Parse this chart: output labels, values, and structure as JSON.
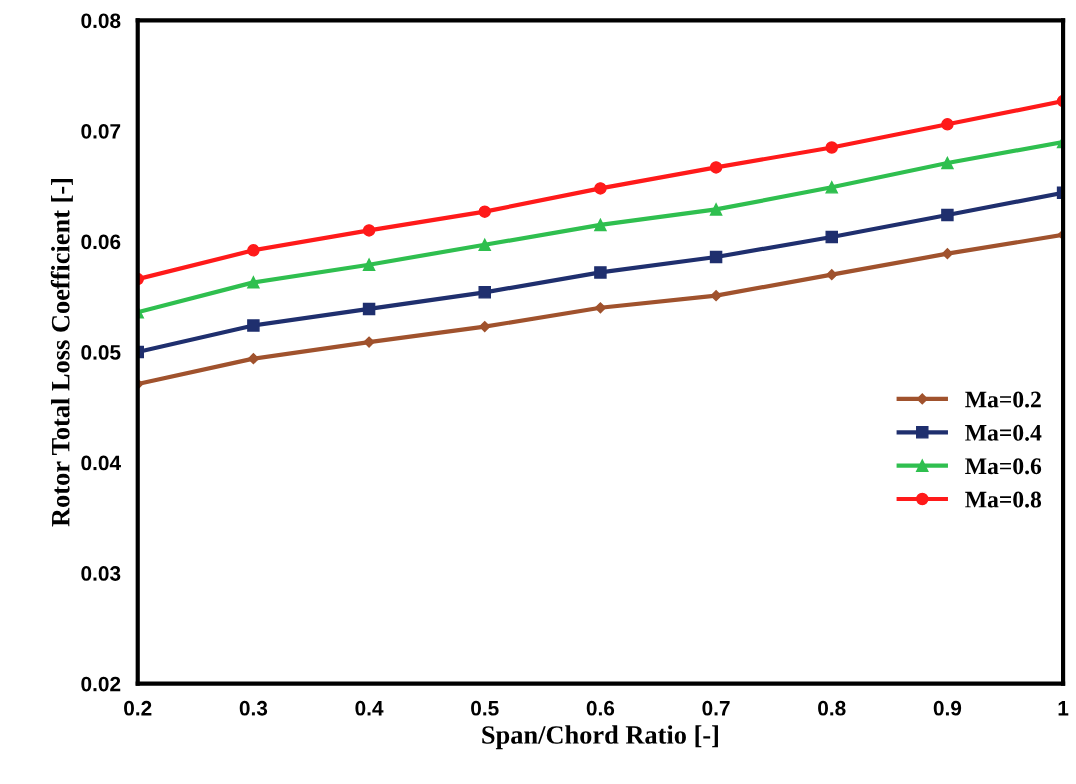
{
  "chart_data": {
    "type": "line",
    "xlabel": "Span/Chord Ratio [-]",
    "ylabel": "Rotor Total Loss Coefficient [-]",
    "x": [
      0.2,
      0.3,
      0.4,
      0.5,
      0.6,
      0.7,
      0.8,
      0.9,
      1.0
    ],
    "series": [
      {
        "name": "Ma=0.2",
        "color": "#a0522d",
        "marker": "diamond",
        "values": [
          0.0471,
          0.0494,
          0.0509,
          0.0523,
          0.054,
          0.0551,
          0.057,
          0.0589,
          0.0606
        ]
      },
      {
        "name": "Ma=0.4",
        "color": "#1f2f6e",
        "marker": "square",
        "values": [
          0.05,
          0.0524,
          0.0539,
          0.0554,
          0.0572,
          0.0586,
          0.0604,
          0.0624,
          0.0644
        ]
      },
      {
        "name": "Ma=0.6",
        "color": "#2fbf4f",
        "marker": "triangle",
        "values": [
          0.0536,
          0.0563,
          0.0579,
          0.0597,
          0.0615,
          0.0629,
          0.0649,
          0.0671,
          0.069
        ]
      },
      {
        "name": "Ma=0.8",
        "color": "#ff1a1a",
        "marker": "circle",
        "values": [
          0.0566,
          0.0592,
          0.061,
          0.0627,
          0.0648,
          0.0667,
          0.0685,
          0.0706,
          0.0727
        ]
      }
    ],
    "xlim": [
      0.2,
      1.0
    ],
    "xticks": [
      0.2,
      0.3,
      0.4,
      0.5,
      0.6,
      0.7,
      0.8,
      0.9,
      {
        "value": 1.0,
        "label": "1"
      }
    ],
    "ylim": [
      0.02,
      0.08
    ],
    "yticks": [
      0.02,
      0.03,
      0.04,
      0.05,
      0.06,
      0.07,
      0.08
    ],
    "grid": false,
    "legend": "right",
    "line_style": "solid"
  }
}
